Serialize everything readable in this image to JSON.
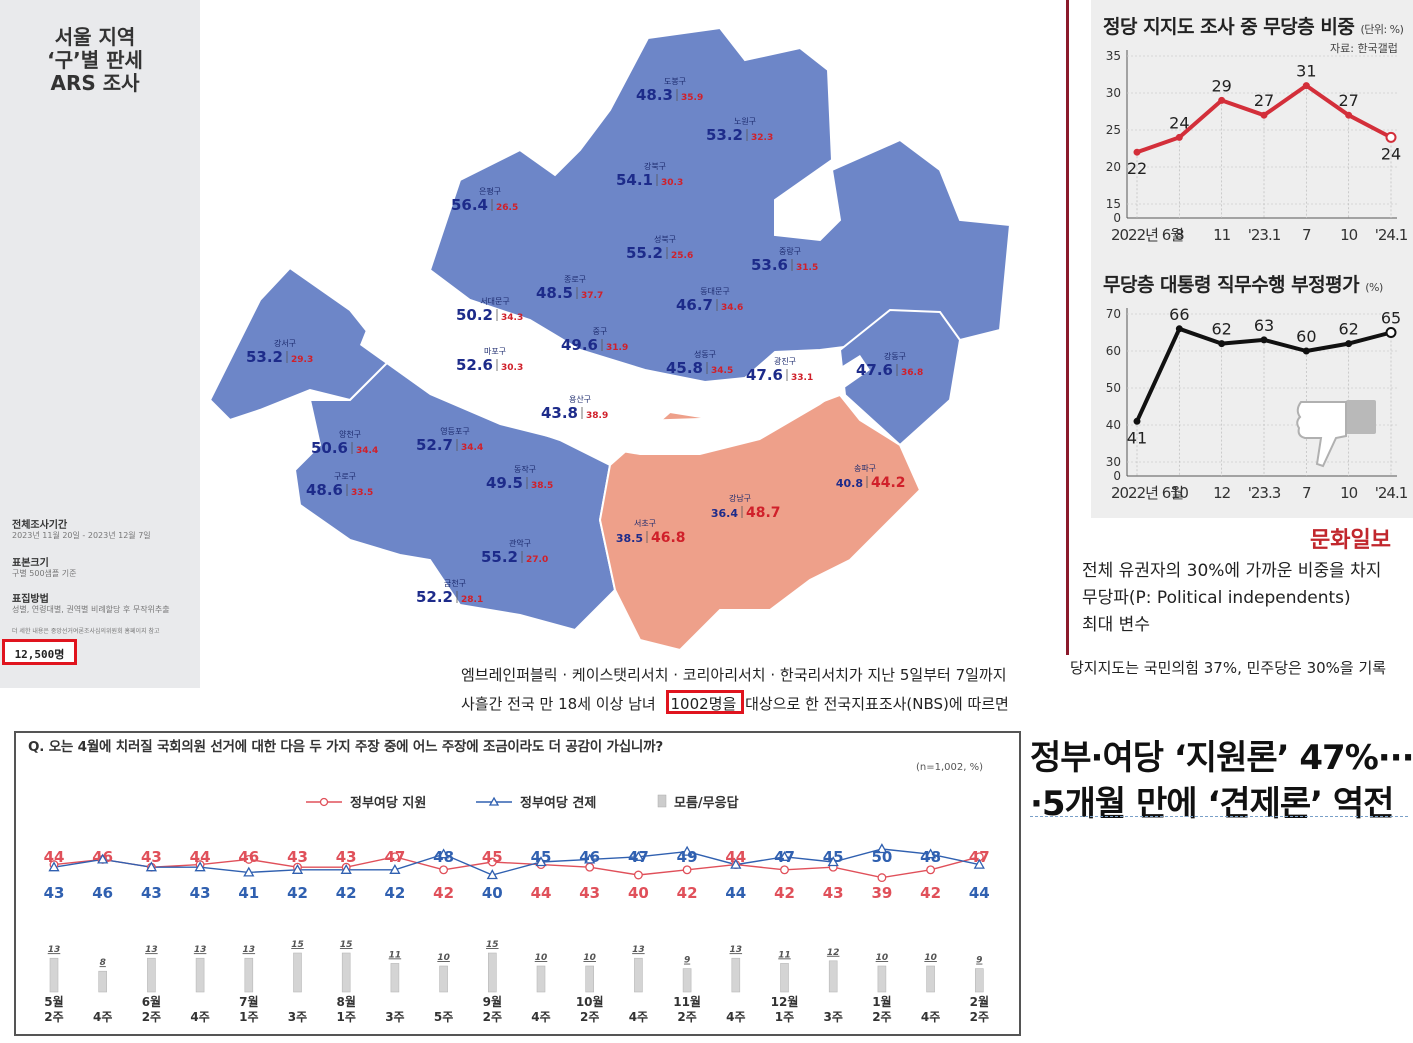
{
  "left_panel": {
    "title_lines": [
      "서울 지역",
      "‘구’별 판세",
      "ARS 조사"
    ],
    "period_label": "전체조사기간",
    "period_text": "2023년 11월 20일 - 2023년 12월 7일",
    "size_label": "표본크기",
    "size_text": "구별 500샘플 기준",
    "method_label": "표집방법",
    "method_text": "성별, 연령대별, 권역별 비례할당 후 무작위추출",
    "footnote": "더 세한 내용은 중앙선거여론조사심의위원회 홈페이지 참고",
    "sample_total": "12,500명"
  },
  "map": {
    "colors": {
      "blue": "#6d86c8",
      "orange": "#eea08a",
      "river": "#ffffff",
      "border": "#ffffff"
    },
    "districts": [
      {
        "name": "도봉구",
        "a": "48.3",
        "b": "35.9"
      },
      {
        "name": "노원구",
        "a": "53.2",
        "b": "32.3"
      },
      {
        "name": "강북구",
        "a": "54.1",
        "b": "30.3"
      },
      {
        "name": "은평구",
        "a": "56.4",
        "b": "26.5"
      },
      {
        "name": "성북구",
        "a": "55.2",
        "b": "25.6"
      },
      {
        "name": "중랑구",
        "a": "53.6",
        "b": "31.5"
      },
      {
        "name": "종로구",
        "a": "48.5",
        "b": "37.7"
      },
      {
        "name": "동대문구",
        "a": "46.7",
        "b": "34.6"
      },
      {
        "name": "서대문구",
        "a": "50.2",
        "b": "34.3"
      },
      {
        "name": "강서구",
        "a": "53.2",
        "b": "29.3"
      },
      {
        "name": "마포구",
        "a": "52.6",
        "b": "30.3"
      },
      {
        "name": "중구",
        "a": "49.6",
        "b": "31.9"
      },
      {
        "name": "성동구",
        "a": "45.8",
        "b": "34.5"
      },
      {
        "name": "광진구",
        "a": "47.6",
        "b": "33.1"
      },
      {
        "name": "강동구",
        "a": "47.6",
        "b": "36.8"
      },
      {
        "name": "용산구",
        "a": "43.8",
        "b": "38.9"
      },
      {
        "name": "양천구",
        "a": "50.6",
        "b": "34.4"
      },
      {
        "name": "영등포구",
        "a": "52.7",
        "b": "34.4"
      },
      {
        "name": "송파구",
        "a": "40.8",
        "b": "44.2"
      },
      {
        "name": "구로구",
        "a": "48.6",
        "b": "33.5"
      },
      {
        "name": "동작구",
        "a": "49.5",
        "b": "38.5"
      },
      {
        "name": "강남구",
        "a": "36.4",
        "b": "48.7"
      },
      {
        "name": "서초구",
        "a": "38.5",
        "b": "46.8"
      },
      {
        "name": "관악구",
        "a": "55.2",
        "b": "27.0"
      },
      {
        "name": "금천구",
        "a": "52.2",
        "b": "28.1"
      }
    ]
  },
  "article_mid": {
    "line1": "엠브레인퍼블릭 · 케이스탯리서치 · 코리아리서치 · 한국리서치가 지난 5일부터 7일까지",
    "line2_pre": "사흘간 전국 만 18세 이상 남녀",
    "line2_highlight": "1002명을",
    "line2_post": "대상으로 한 전국지표조사(NBS)에 따르면"
  },
  "right_panel": {
    "chart1_title": "정당 지지도 조사 중 무당층 비중",
    "chart1_unit": "(단위: %)",
    "chart1_source": "자료: 한국갤럽",
    "chart2_title": "무당층 대통령 직무수행 부정평가",
    "chart2_unit": "(%)",
    "brand": "문화일보",
    "text_line1": "전체 유권자의 30%에 가까운 비중을 차지",
    "text_line2": "무당파(P: Political independents)",
    "text_line3": "최대 변수",
    "bottom_note": "당지지도는 국민의힘 37%, 민주당은 30%을 기록"
  },
  "headline": {
    "line1": "정부·여당 ‘지원론’ 47%···",
    "line2": "·5개월 만에 ‘견제론’ 역전"
  },
  "chart_data": [
    {
      "type": "line",
      "title": "정당 지지도 조사 중 무당층 비중",
      "x": [
        "2022년 6월",
        "8",
        "11",
        "'23.1",
        "7",
        "10",
        "'24.1"
      ],
      "series": [
        {
          "name": "",
          "values": [
            22,
            24,
            29,
            27,
            31,
            27,
            24
          ]
        }
      ],
      "ylim": [
        0,
        35
      ],
      "yticks": [
        0,
        15,
        20,
        25,
        30,
        35
      ],
      "color": "#d32f3a"
    },
    {
      "type": "line",
      "title": "무당층 대통령 직무수행 부정평가",
      "x": [
        "2022년 6월",
        "10",
        "12",
        "'23.3",
        "7",
        "10",
        "'24.1"
      ],
      "series": [
        {
          "name": "",
          "values": [
            41,
            66,
            62,
            63,
            60,
            62,
            65
          ]
        }
      ],
      "ylim": [
        0,
        70
      ],
      "yticks": [
        0,
        30,
        40,
        50,
        60,
        70
      ],
      "color": "#111111"
    },
    {
      "type": "line",
      "title": "Q. 오는 4월에 치러질 국회의원 선거에 대한 다음 두 가지 주장 중에 어느 주장에 조금이라도 더 공감이 가십니까?",
      "note": "(n=1,002, %)",
      "x": [
        "5월 2주",
        "4주",
        "6월 2주",
        "4주",
        "7월 1주",
        "3주",
        "8월 1주",
        "3주",
        "5주",
        "9월 2주",
        "4주",
        "10월 2주",
        "4주",
        "11월 2주",
        "4주",
        "12월 1주",
        "3주",
        "1월 2주",
        "4주",
        "2월 2주"
      ],
      "series": [
        {
          "name": "정부여당 지원",
          "color": "#e0505a",
          "values": [
            44,
            46,
            43,
            44,
            46,
            43,
            43,
            47,
            42,
            45,
            44,
            43,
            40,
            42,
            44,
            42,
            43,
            39,
            42,
            47
          ]
        },
        {
          "name": "정부여당 견제",
          "color": "#3060b0",
          "values": [
            43,
            46,
            43,
            43,
            41,
            42,
            42,
            42,
            48,
            40,
            45,
            46,
            47,
            49,
            44,
            47,
            45,
            50,
            48,
            44
          ]
        },
        {
          "name": "모름/무응답",
          "color": "#cccccc",
          "values": [
            13,
            8,
            13,
            13,
            13,
            15,
            15,
            11,
            10,
            15,
            10,
            10,
            13,
            9,
            13,
            11,
            12,
            10,
            10,
            9
          ]
        }
      ]
    }
  ]
}
